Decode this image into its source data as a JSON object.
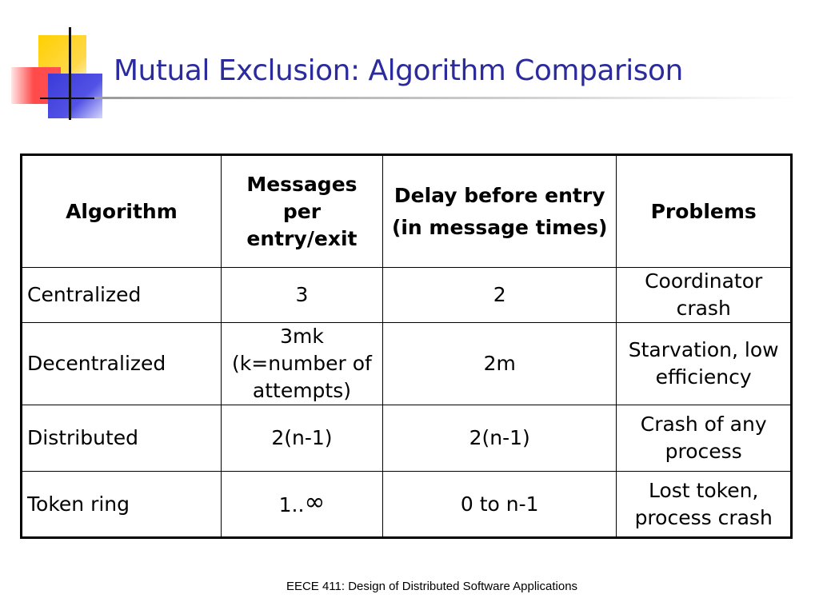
{
  "slide": {
    "title": "Mutual Exclusion: Algorithm Comparison",
    "footer": "EECE 411: Design of Distributed Software Applications"
  },
  "table": {
    "headers": [
      {
        "label": "Algorithm"
      },
      {
        "label": "Messages per entry/exit"
      },
      {
        "label_line1": "Delay before entry",
        "label_line2": "(in message times)"
      },
      {
        "label": "Problems"
      }
    ],
    "rows": [
      {
        "algorithm": "Centralized",
        "messages": "3",
        "delay": "2",
        "problems": "Coordinator crash"
      },
      {
        "algorithm": "Decentralized",
        "messages": "3mk (k=number of attempts)",
        "delay": "2m",
        "problems": "Starvation, low efficiency"
      },
      {
        "algorithm": "Distributed",
        "messages": "2(n-1)",
        "delay": "2(n-1)",
        "problems": "Crash of any process"
      },
      {
        "algorithm": "Token ring",
        "messages_prefix": "1..",
        "messages_symbol": "∞",
        "delay": "0 to n-1",
        "problems": "Lost token, process crash"
      }
    ]
  }
}
